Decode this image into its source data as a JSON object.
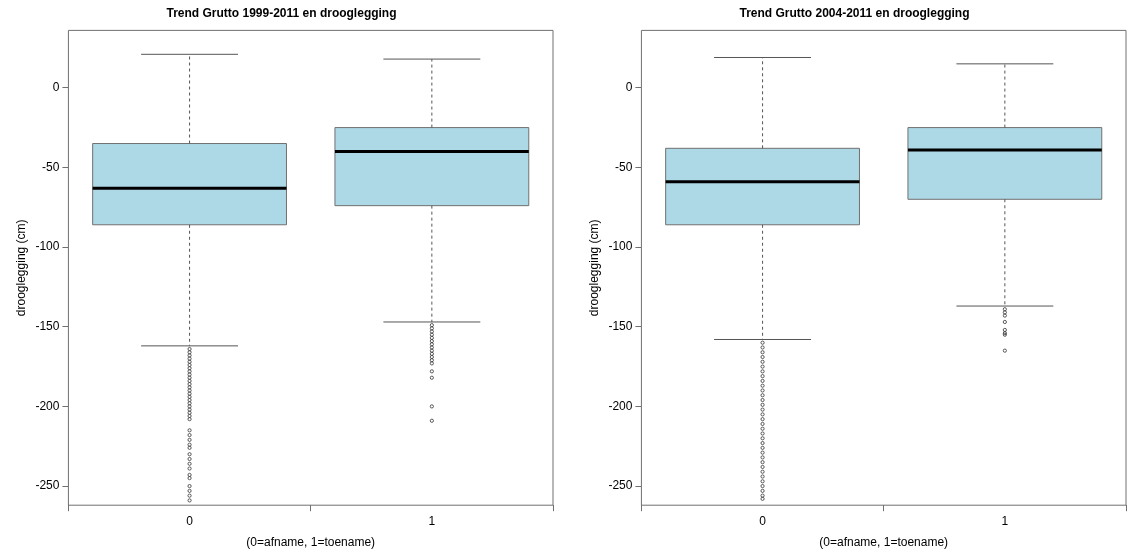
{
  "chart_data": [
    {
      "type": "box",
      "title": "Trend Grutto 1999-2011 en drooglegging",
      "xlabel": "(0=afname, 1=toename)",
      "ylabel": "drooglegging (cm)",
      "categories": [
        "0",
        "1"
      ],
      "color": "#add8e6",
      "ylim": [
        -262,
        36
      ],
      "yticks": [
        0,
        -50,
        -100,
        -150,
        -200,
        -250
      ],
      "legend": false,
      "boxes": [
        {
          "low": -162,
          "q1": -86,
          "median": -63,
          "q3": -35,
          "high": 21,
          "outliers": [
            -164,
            -166,
            -168,
            -170,
            -172,
            -174,
            -176,
            -178,
            -180,
            -182,
            -184,
            -186,
            -188,
            -190,
            -192,
            -194,
            -196,
            -198,
            -200,
            -202,
            -204,
            -206,
            -208,
            -215,
            -218,
            -221,
            -224,
            -226,
            -230,
            -233,
            -236,
            -239,
            -243,
            -245,
            -250,
            -253,
            -256,
            -259
          ]
        },
        {
          "low": -147,
          "q1": -74,
          "median": -40,
          "q3": -25,
          "high": 18,
          "outliers": [
            -149,
            -151,
            -153,
            -155,
            -157,
            -159,
            -161,
            -163,
            -165,
            -167,
            -169,
            -171,
            -173,
            -178,
            -182,
            -200,
            -209
          ]
        }
      ]
    },
    {
      "type": "box",
      "title": "Trend Grutto 2004-2011 en drooglegging",
      "xlabel": "(0=afname, 1=toename)",
      "ylabel": "drooglegging (cm)",
      "categories": [
        "0",
        "1"
      ],
      "color": "#add8e6",
      "ylim": [
        -262,
        36
      ],
      "yticks": [
        0,
        -50,
        -100,
        -150,
        -200,
        -250
      ],
      "legend": false,
      "boxes": [
        {
          "low": -158,
          "q1": -86,
          "median": -59,
          "q3": -38,
          "high": 19,
          "outliers": [
            -160,
            -163,
            -166,
            -169,
            -172,
            -175,
            -178,
            -181,
            -184,
            -187,
            -190,
            -193,
            -196,
            -199,
            -202,
            -205,
            -208,
            -211,
            -214,
            -217,
            -220,
            -223,
            -226,
            -229,
            -232,
            -235,
            -238,
            -241,
            -244,
            -247,
            -250,
            -253,
            -256,
            -258
          ]
        },
        {
          "low": -137,
          "q1": -70,
          "median": -39,
          "q3": -25,
          "high": 15,
          "outliers": [
            -139,
            -141,
            -143,
            -147,
            -152,
            -154,
            -155,
            -165
          ]
        }
      ]
    }
  ]
}
